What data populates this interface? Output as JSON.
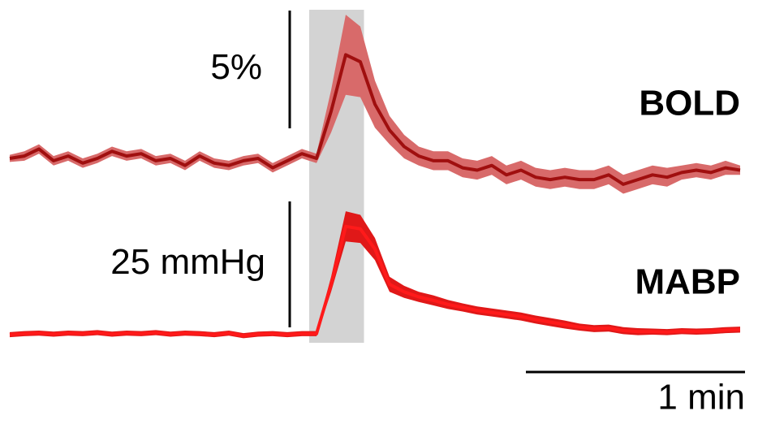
{
  "chart_data": {
    "type": "line",
    "x": [
      0,
      4,
      8,
      12,
      16,
      20,
      24,
      28,
      32,
      36,
      40,
      44,
      48,
      52,
      56,
      60,
      64,
      68,
      72,
      76,
      80,
      84,
      88,
      92,
      96,
      100,
      104,
      108,
      112,
      116,
      120,
      124,
      128,
      132,
      136,
      140,
      144,
      148,
      152,
      156,
      160,
      164,
      168,
      172,
      176,
      180,
      184,
      188,
      192,
      196,
      200
    ],
    "stimulus": [
      82,
      97
    ],
    "stimulus_color": "#d3d3d3",
    "series": [
      {
        "name": "BOLD",
        "color": "#a00f0f",
        "band_color": "#d86a6a",
        "values": [
          0,
          0.1,
          0.4,
          -0.1,
          0.1,
          -0.2,
          0.0,
          0.3,
          0.1,
          0.2,
          -0.1,
          0.0,
          -0.3,
          0.1,
          -0.2,
          -0.3,
          -0.1,
          0.0,
          -0.4,
          -0.1,
          0.2,
          0.0,
          2.0,
          4.4,
          4.1,
          2.3,
          1.2,
          0.5,
          0.1,
          -0.1,
          -0.1,
          -0.4,
          -0.5,
          -0.3,
          -0.7,
          -0.5,
          -0.8,
          -0.9,
          -0.8,
          -0.9,
          -0.9,
          -0.7,
          -1.1,
          -0.9,
          -0.7,
          -0.8,
          -0.6,
          -0.5,
          -0.6,
          -0.4,
          -0.5
        ],
        "errors": [
          0.15,
          0.2,
          0.2,
          0.2,
          0.2,
          0.2,
          0.2,
          0.2,
          0.2,
          0.2,
          0.2,
          0.2,
          0.2,
          0.2,
          0.2,
          0.2,
          0.2,
          0.2,
          0.2,
          0.2,
          0.2,
          0.2,
          0.9,
          1.7,
          1.5,
          1.0,
          0.6,
          0.5,
          0.4,
          0.4,
          0.4,
          0.4,
          0.4,
          0.4,
          0.4,
          0.4,
          0.4,
          0.4,
          0.4,
          0.4,
          0.4,
          0.4,
          0.4,
          0.4,
          0.4,
          0.4,
          0.3,
          0.3,
          0.3,
          0.3,
          0.2
        ]
      },
      {
        "name": "MABP",
        "color": "#ff1a1a",
        "band_color": "#e01818",
        "values": [
          0,
          0.2,
          0.3,
          0.1,
          0.3,
          0.2,
          0.4,
          0.1,
          0.3,
          0.2,
          0.4,
          0.1,
          0.3,
          0.2,
          0.0,
          0.3,
          -0.2,
          0.1,
          0.2,
          0.0,
          0.2,
          0.2,
          10,
          21.5,
          21,
          17,
          10,
          8.5,
          7.5,
          6.8,
          6,
          5.4,
          4.8,
          4.4,
          4,
          3.6,
          3,
          2.5,
          2,
          1.5,
          1.2,
          1.3,
          0.8,
          0.6,
          0.6,
          0.5,
          0.7,
          0.6,
          0.7,
          0.9,
          1
        ],
        "errors": [
          0.5,
          0.5,
          0.5,
          0.5,
          0.5,
          0.5,
          0.5,
          0.5,
          0.5,
          0.5,
          0.5,
          0.5,
          0.5,
          0.5,
          0.5,
          0.5,
          0.5,
          0.5,
          0.5,
          0.5,
          0.5,
          0.5,
          1.5,
          3,
          2.8,
          2.2,
          1.5,
          1.2,
          1,
          1,
          0.9,
          0.8,
          0.8,
          0.8,
          0.8,
          0.8,
          0.8,
          0.8,
          0.8,
          0.7,
          0.7,
          0.7,
          0.7,
          0.7,
          0.6,
          0.6,
          0.6,
          0.6,
          0.6,
          0.6,
          0.6
        ]
      }
    ],
    "scale_bars": [
      {
        "value": 5,
        "label": "5%"
      },
      {
        "value": 25,
        "label": "25 mmHg"
      },
      {
        "value": 60,
        "label": "1 min"
      }
    ]
  }
}
